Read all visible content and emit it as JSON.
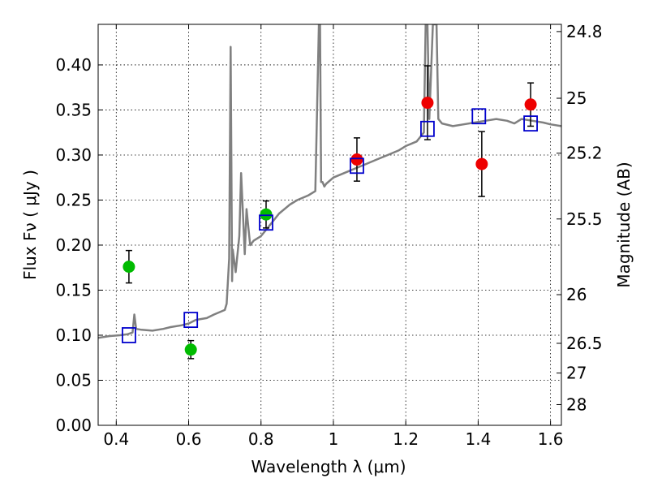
{
  "chart_data": {
    "type": "scatter",
    "xlabel": "Wavelength  λ (μm)",
    "ylabel": "Flux  Fν  ( μJy )",
    "ylabel_right": "Magnitude (AB)",
    "xlim": [
      0.35,
      1.63
    ],
    "ylim": [
      0.0,
      0.445
    ],
    "grid": true,
    "x_ticks": [
      0.4,
      0.6,
      0.8,
      1.0,
      1.2,
      1.4,
      1.6
    ],
    "x_tick_labels": [
      "0.4",
      "0.6",
      "0.8",
      "1",
      "1.2",
      "1.4",
      "1.6"
    ],
    "y_ticks": [
      0.0,
      0.05,
      0.1,
      0.15,
      0.2,
      0.25,
      0.3,
      0.35,
      0.4
    ],
    "y_tick_labels": [
      "0.00",
      "0.05",
      "0.10",
      "0.15",
      "0.20",
      "0.25",
      "0.30",
      "0.35",
      "0.40"
    ],
    "right_ticks": [
      {
        "label": "24.8",
        "flux": 0.437
      },
      {
        "label": "25",
        "flux": 0.363
      },
      {
        "label": "25.2",
        "flux": 0.302
      },
      {
        "label": "25.5",
        "flux": 0.229
      },
      {
        "label": "26",
        "flux": 0.145
      },
      {
        "label": "26.5",
        "flux": 0.091
      },
      {
        "label": "27",
        "flux": 0.058
      },
      {
        "label": "28",
        "flux": 0.023
      }
    ],
    "series": [
      {
        "marker": "circle",
        "color": "#00bb00",
        "points": [
          {
            "x": 0.435,
            "y": 0.176,
            "yerr": 0.018
          },
          {
            "x": 0.606,
            "y": 0.084,
            "yerr": 0.01
          },
          {
            "x": 0.814,
            "y": 0.234,
            "yerr": 0.015
          }
        ]
      },
      {
        "marker": "circle",
        "color": "#ee0000",
        "points": [
          {
            "x": 1.065,
            "y": 0.295,
            "yerr": 0.024
          },
          {
            "x": 1.26,
            "y": 0.358,
            "yerr": 0.041
          },
          {
            "x": 1.41,
            "y": 0.29,
            "yerr": 0.036
          },
          {
            "x": 1.545,
            "y": 0.356,
            "yerr": 0.024
          }
        ]
      },
      {
        "marker": "square",
        "color": "#0000cc",
        "points": [
          {
            "x": 0.435,
            "y": 0.1
          },
          {
            "x": 0.606,
            "y": 0.117
          },
          {
            "x": 0.814,
            "y": 0.225
          },
          {
            "x": 1.065,
            "y": 0.288
          },
          {
            "x": 1.26,
            "y": 0.329
          },
          {
            "x": 1.402,
            "y": 0.343
          },
          {
            "x": 1.545,
            "y": 0.335
          }
        ]
      },
      {
        "type": "line",
        "color": "#808080",
        "x": [
          0.35,
          0.38,
          0.41,
          0.43,
          0.445,
          0.45,
          0.455,
          0.47,
          0.5,
          0.53,
          0.55,
          0.58,
          0.6,
          0.62,
          0.65,
          0.67,
          0.7,
          0.705,
          0.712,
          0.716,
          0.72,
          0.722,
          0.73,
          0.74,
          0.745,
          0.755,
          0.76,
          0.765,
          0.77,
          0.78,
          0.8,
          0.82,
          0.85,
          0.88,
          0.9,
          0.93,
          0.95,
          0.96,
          0.963,
          0.966,
          0.97,
          0.975,
          0.98,
          1.0,
          1.03,
          1.06,
          1.09,
          1.12,
          1.15,
          1.18,
          1.2,
          1.23,
          1.25,
          1.255,
          1.26,
          1.265,
          1.275,
          1.28,
          1.285,
          1.29,
          1.3,
          1.33,
          1.36,
          1.39,
          1.42,
          1.45,
          1.48,
          1.5,
          1.52,
          1.55,
          1.58,
          1.6,
          1.63
        ],
        "y": [
          0.097,
          0.099,
          0.1,
          0.101,
          0.103,
          0.123,
          0.107,
          0.106,
          0.105,
          0.107,
          0.109,
          0.111,
          0.113,
          0.117,
          0.119,
          0.123,
          0.128,
          0.135,
          0.185,
          0.42,
          0.16,
          0.195,
          0.17,
          0.21,
          0.28,
          0.19,
          0.24,
          0.22,
          0.2,
          0.205,
          0.21,
          0.22,
          0.235,
          0.245,
          0.25,
          0.255,
          0.26,
          0.445,
          0.445,
          0.27,
          0.27,
          0.265,
          0.268,
          0.275,
          0.28,
          0.285,
          0.29,
          0.295,
          0.3,
          0.305,
          0.31,
          0.315,
          0.325,
          0.445,
          0.445,
          0.34,
          0.445,
          0.445,
          0.445,
          0.34,
          0.335,
          0.332,
          0.334,
          0.336,
          0.338,
          0.34,
          0.338,
          0.335,
          0.34,
          0.338,
          0.336,
          0.334,
          0.332
        ]
      }
    ]
  }
}
